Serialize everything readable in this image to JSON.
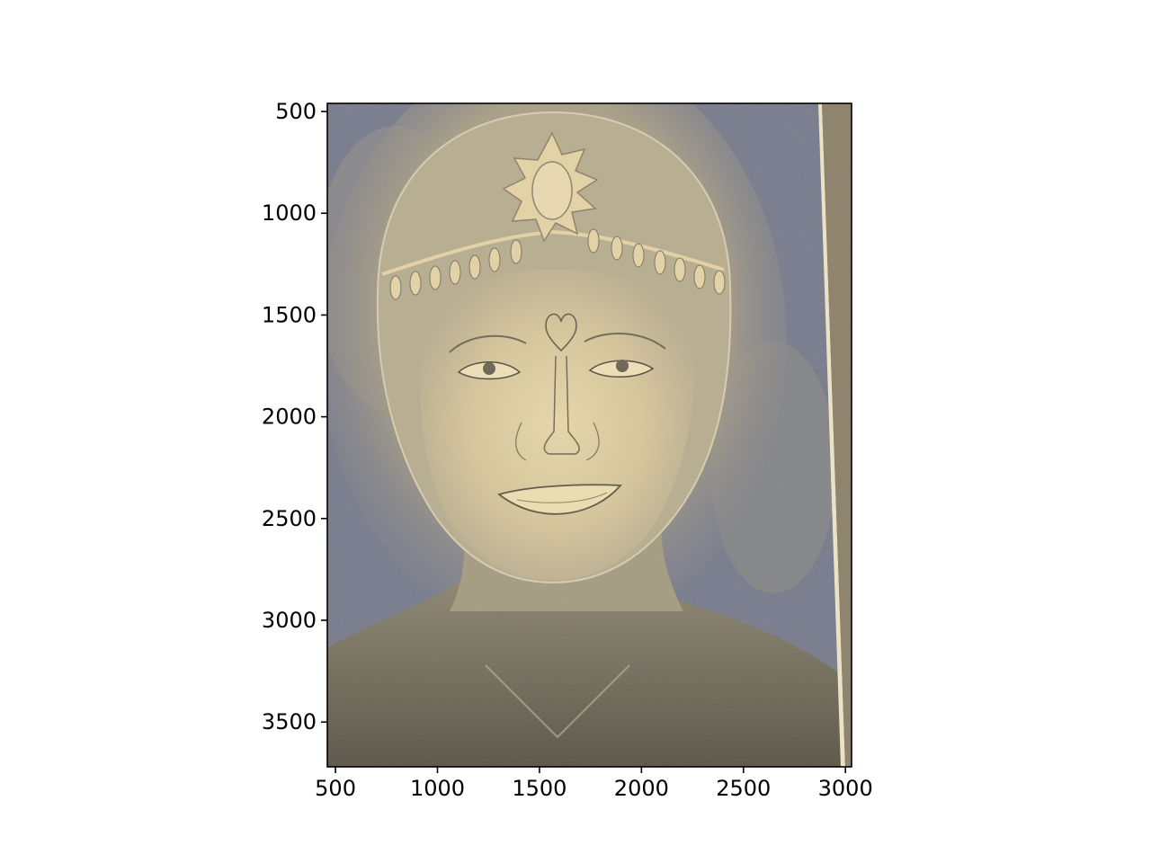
{
  "chart_data": {
    "type": "image",
    "title": "",
    "xlabel": "",
    "ylabel": "",
    "xlim": [
      460,
      3030
    ],
    "ylim": [
      3720,
      460
    ],
    "x_ticks": [
      500,
      1000,
      1500,
      2000,
      2500,
      3000
    ],
    "y_ticks": [
      500,
      1000,
      1500,
      2000,
      2500,
      3000,
      3500
    ],
    "x_tick_labels": [
      "500",
      "1000",
      "1500",
      "2000",
      "2500",
      "3000"
    ],
    "y_tick_labels": [
      "500",
      "1000",
      "1500",
      "2000",
      "2500",
      "3000",
      "3500"
    ],
    "grid": false,
    "image_content": "posterized pencil and pastel portrait of a smiling face wearing a jeweled headband with a sun emblem, heart mark on the forehead",
    "palette": {
      "background_blue": "#767a8c",
      "light_skin": "#e6d4a6",
      "mid_tone": "#b3a88c",
      "shadow": "#575246",
      "olive": "#8b8068",
      "board_edge": "#f0e6c8"
    }
  }
}
